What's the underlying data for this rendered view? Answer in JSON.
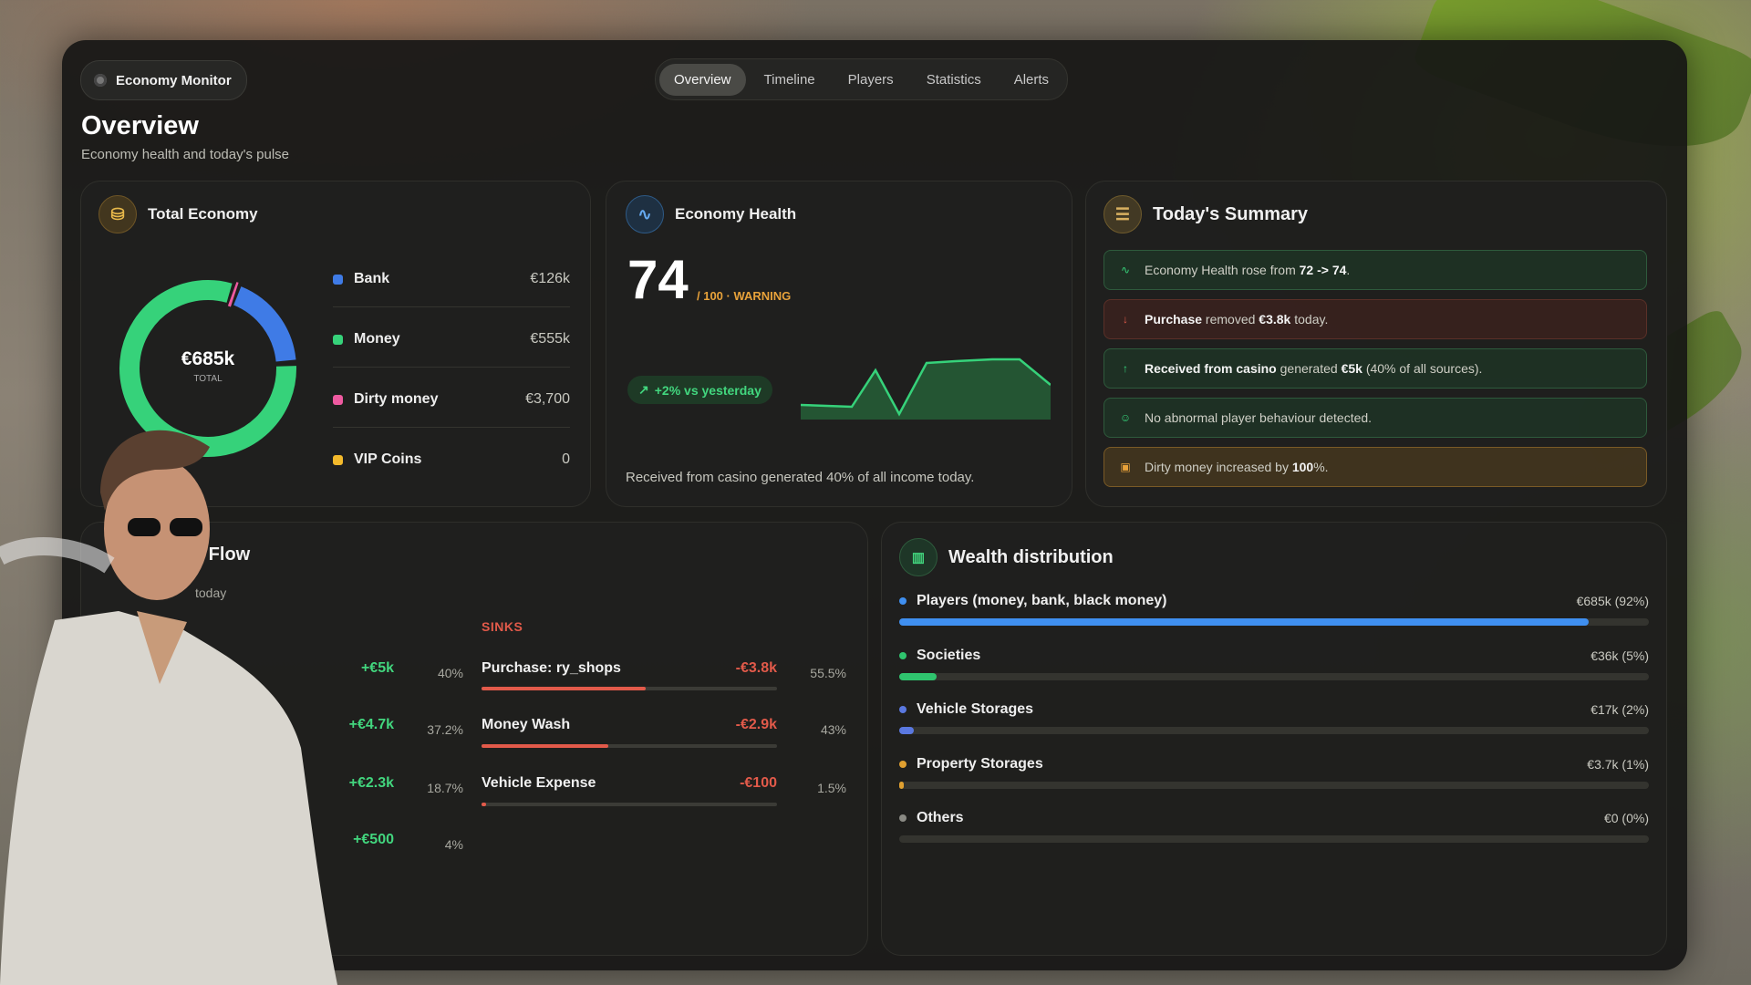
{
  "app": {
    "name": "Economy Monitor"
  },
  "tabs": [
    {
      "label": "Overview"
    },
    {
      "label": "Timeline"
    },
    {
      "label": "Players"
    },
    {
      "label": "Statistics"
    },
    {
      "label": "Alerts"
    }
  ],
  "page": {
    "title": "Overview",
    "subtitle": "Economy health and today's pulse"
  },
  "total_economy": {
    "title": "Total Economy",
    "total_value": "€685k",
    "total_label": "TOTAL",
    "items": [
      {
        "label": "Bank",
        "value": "€126k",
        "color": "#3f7be6",
        "share": 0.184
      },
      {
        "label": "Money",
        "value": "€555k",
        "color": "#36d27a",
        "share": 0.81
      },
      {
        "label": "Dirty money",
        "value": "€3,700",
        "color": "#ee5aa0",
        "share": 0.006
      },
      {
        "label": "VIP Coins",
        "value": "0",
        "color": "#f3b92b",
        "share": 0
      }
    ]
  },
  "economy_health": {
    "title": "Economy Health",
    "score": "74",
    "suffix": "/ 100 · WARNING",
    "change_badge": "+2% vs yesterday",
    "note": "Received from casino generated 40% of all income today."
  },
  "todays_summary": {
    "title": "Today's Summary",
    "items": [
      {
        "prefix": "Economy Health rose from ",
        "b1": "72 -> 74",
        "mid": ".",
        "b2": "",
        "suffix": "",
        "tone": "green",
        "icon": "pulse-icon"
      },
      {
        "prefix": "",
        "b1": "Purchase",
        "mid": " removed ",
        "b2": "€3.8k",
        "suffix": " today.",
        "tone": "red",
        "icon": "arrow-down-icon"
      },
      {
        "prefix": "",
        "b1": "Received from casino",
        "mid": " generated ",
        "b2": "€5k",
        "suffix": " (40% of all sources).",
        "tone": "green",
        "icon": "arrow-up-icon"
      },
      {
        "prefix": "No abnormal player behaviour detected.",
        "b1": "",
        "mid": "",
        "b2": "",
        "suffix": "",
        "tone": "green",
        "icon": "users-icon"
      },
      {
        "prefix": "Dirty money increased by ",
        "b1": "100",
        "mid": "%.",
        "b2": "",
        "suffix": "",
        "tone": "amber",
        "icon": "wallet-icon"
      }
    ]
  },
  "money_flow": {
    "title": "y Flow",
    "subtitle": "today",
    "sources": [
      {
        "value": "+€5k",
        "pct": "40%"
      },
      {
        "value": "+€4.7k",
        "pct": "37.2%"
      },
      {
        "value": "+€2.3k",
        "pct": "18.7%"
      },
      {
        "value": "+€500",
        "pct": "4%"
      }
    ],
    "sinks_label": "SINKS",
    "sinks": [
      {
        "label": "Purchase: ry_shops",
        "value": "-€3.8k",
        "pct": "55.5%",
        "fill": 0.555
      },
      {
        "label": "Money Wash",
        "value": "-€2.9k",
        "pct": "43%",
        "fill": 0.43
      },
      {
        "label": "Vehicle Expense",
        "value": "-€100",
        "pct": "1.5%",
        "fill": 0.015
      }
    ]
  },
  "wealth_distribution": {
    "title": "Wealth distribution",
    "rows": [
      {
        "label": "Players (money, bank, black money)",
        "value": "€685k (92%)",
        "fill": 0.92,
        "color": "#3f8ff0"
      },
      {
        "label": "Societies",
        "value": "€36k (5%)",
        "fill": 0.05,
        "color": "#2fc46e"
      },
      {
        "label": "Vehicle Storages",
        "value": "€17k (2%)",
        "fill": 0.02,
        "color": "#5a78e0"
      },
      {
        "label": "Property Storages",
        "value": "€3.7k (1%)",
        "fill": 0.005,
        "color": "#e0a030"
      },
      {
        "label": "Others",
        "value": "€0 (0%)",
        "fill": 0,
        "color": "#8a8a84"
      }
    ]
  },
  "colors": {
    "accent_green": "#36d27a",
    "accent_red": "#e25a4a",
    "warning": "#e8a23a"
  }
}
